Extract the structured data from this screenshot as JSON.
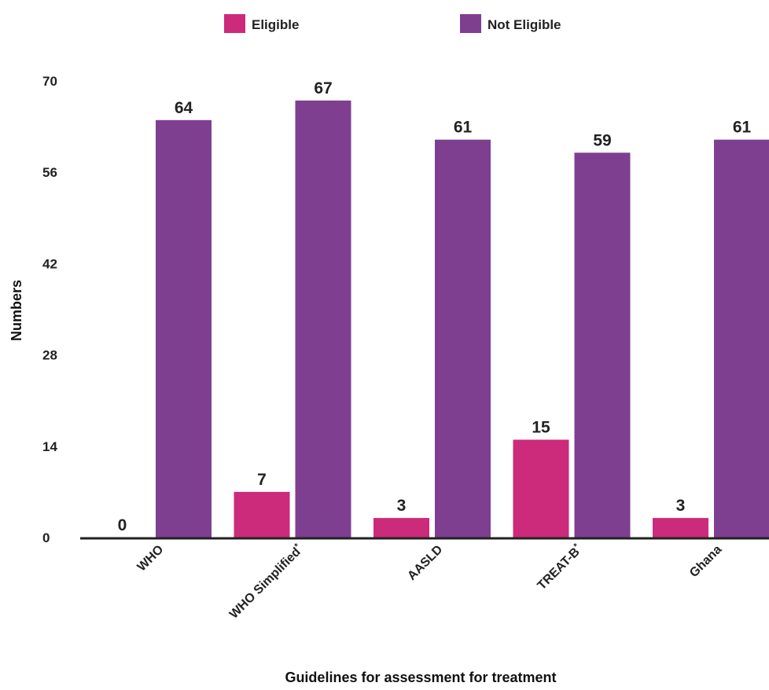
{
  "chart_data": {
    "type": "bar",
    "title": "",
    "xlabel": "Guidelines for assessment for treatment",
    "ylabel": "Numbers",
    "categories": [
      "WHO",
      "WHO Simplified",
      "AASLD",
      "TREAT-B",
      "Ghana"
    ],
    "category_marks": [
      "",
      "*",
      "",
      "*",
      ""
    ],
    "series": [
      {
        "name": "Eligible",
        "color": "#cc2a7a",
        "values": [
          0,
          7,
          3,
          15,
          3
        ]
      },
      {
        "name": "Not Eligible",
        "color": "#7e3f91",
        "values": [
          64,
          67,
          61,
          59,
          61
        ]
      }
    ],
    "ylim": [
      0,
      70
    ],
    "yticks": [
      0,
      14,
      28,
      42,
      56,
      70
    ],
    "grid": false,
    "legend": "top-center"
  }
}
